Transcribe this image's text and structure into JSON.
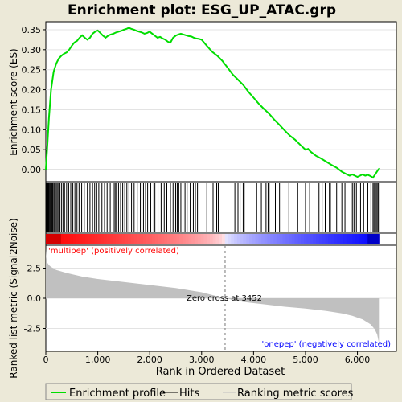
{
  "chart_data": {
    "type": "line",
    "title": "Enrichment plot: ESG_UP_ATAC.grp",
    "top_panel": {
      "ylabel": "Enrichment score (ES)",
      "ylim": [
        -0.03,
        0.37
      ],
      "yticks": [
        0.0,
        0.05,
        0.1,
        0.15,
        0.2,
        0.25,
        0.3,
        0.35
      ],
      "ytick_labels": [
        "0.00",
        "0.05",
        "0.10",
        "0.15",
        "0.20",
        "0.25",
        "0.30",
        "0.35"
      ],
      "series_name": "Enrichment profile",
      "color": "#00dd00",
      "x": [
        0,
        30,
        60,
        100,
        150,
        200,
        250,
        300,
        350,
        400,
        450,
        500,
        550,
        600,
        650,
        700,
        750,
        800,
        850,
        900,
        950,
        1000,
        1050,
        1100,
        1150,
        1200,
        1250,
        1300,
        1350,
        1400,
        1450,
        1500,
        1550,
        1600,
        1650,
        1700,
        1750,
        1800,
        1850,
        1900,
        1950,
        2000,
        2050,
        2100,
        2150,
        2200,
        2250,
        2300,
        2350,
        2400,
        2450,
        2500,
        2550,
        2600,
        2650,
        2700,
        2750,
        2800,
        2850,
        2900,
        2950,
        3000,
        3100,
        3200,
        3300,
        3400,
        3500,
        3600,
        3700,
        3800,
        3900,
        4000,
        4100,
        4200,
        4300,
        4400,
        4500,
        4600,
        4700,
        4800,
        4900,
        5000,
        5050,
        5100,
        5200,
        5300,
        5400,
        5500,
        5600,
        5700,
        5800,
        5850,
        5900,
        5950,
        6000,
        6050,
        6100,
        6150,
        6200,
        6250,
        6300,
        6350,
        6400,
        6430
      ],
      "y": [
        0.0,
        0.06,
        0.13,
        0.2,
        0.245,
        0.265,
        0.278,
        0.285,
        0.29,
        0.293,
        0.3,
        0.31,
        0.318,
        0.322,
        0.33,
        0.336,
        0.33,
        0.325,
        0.33,
        0.34,
        0.345,
        0.348,
        0.342,
        0.335,
        0.33,
        0.335,
        0.338,
        0.34,
        0.343,
        0.345,
        0.347,
        0.35,
        0.352,
        0.355,
        0.352,
        0.35,
        0.347,
        0.345,
        0.343,
        0.34,
        0.342,
        0.345,
        0.34,
        0.335,
        0.33,
        0.332,
        0.328,
        0.325,
        0.32,
        0.318,
        0.33,
        0.335,
        0.338,
        0.34,
        0.338,
        0.336,
        0.334,
        0.333,
        0.33,
        0.328,
        0.327,
        0.325,
        0.31,
        0.295,
        0.285,
        0.272,
        0.255,
        0.238,
        0.225,
        0.212,
        0.195,
        0.18,
        0.165,
        0.152,
        0.14,
        0.125,
        0.112,
        0.098,
        0.085,
        0.075,
        0.062,
        0.05,
        0.052,
        0.045,
        0.035,
        0.028,
        0.02,
        0.012,
        0.005,
        -0.005,
        -0.012,
        -0.015,
        -0.012,
        -0.015,
        -0.018,
        -0.015,
        -0.012,
        -0.015,
        -0.013,
        -0.016,
        -0.02,
        -0.01,
        0.0,
        0.004
      ]
    },
    "hits_panel": {
      "series_name": "Hits",
      "positions": [
        5,
        15,
        25,
        35,
        45,
        55,
        65,
        80,
        95,
        110,
        125,
        140,
        160,
        180,
        200,
        220,
        245,
        270,
        300,
        330,
        360,
        400,
        440,
        480,
        520,
        560,
        600,
        640,
        690,
        740,
        800,
        850,
        900,
        940,
        980,
        1020,
        1080,
        1130,
        1180,
        1240,
        1300,
        1330,
        1350,
        1370,
        1400,
        1440,
        1480,
        1520,
        1560,
        1600,
        1650,
        1700,
        1760,
        1820,
        1880,
        1920,
        1960,
        2020,
        2080,
        2100,
        2160,
        2220,
        2280,
        2330,
        2400,
        2450,
        2500,
        2530,
        2560,
        2600,
        2640,
        2680,
        2720,
        2780,
        2840,
        2880,
        2920,
        3100,
        3220,
        3290,
        3320,
        3640,
        3700,
        3740,
        3800,
        3820,
        4060,
        4150,
        4240,
        4280,
        4300,
        4420,
        4500,
        4680,
        4850,
        5000,
        5080,
        5260,
        5320,
        5380,
        5460,
        5480,
        5600,
        5700,
        5760,
        5880,
        5910,
        5940,
        5980,
        6060,
        6120,
        6200,
        6260,
        6300,
        6320,
        6360,
        6380,
        6400,
        6420
      ]
    },
    "rank_panel": {
      "ylabel": "Ranked list metric (Signal2Noise)",
      "series_name": "Ranking metric scores",
      "ylim": [
        -4.4,
        4.4
      ],
      "yticks": [
        -2.5,
        0.0,
        2.5
      ],
      "ytick_labels": [
        "-2.5",
        "0.0",
        "2.5"
      ],
      "x": [
        0,
        10,
        30,
        60,
        100,
        200,
        400,
        700,
        1000,
        1500,
        2000,
        2500,
        3000,
        3452,
        3800,
        4200,
        4600,
        5000,
        5400,
        5700,
        5900,
        6100,
        6250,
        6330,
        6380,
        6410,
        6430
      ],
      "y": [
        4.1,
        3.4,
        2.95,
        2.75,
        2.6,
        2.35,
        2.1,
        1.8,
        1.6,
        1.35,
        1.1,
        0.85,
        0.5,
        0.0,
        -0.3,
        -0.5,
        -0.7,
        -0.85,
        -1.05,
        -1.25,
        -1.45,
        -1.75,
        -2.15,
        -2.55,
        -3.0,
        -3.6,
        -4.3
      ],
      "annotations": [
        "Zero cross at 3452",
        "'multipep' (positively correlated)",
        "'onepep' (negatively correlated)"
      ],
      "zero_cross": 3452
    },
    "xlabel": "Rank in Ordered Dataset",
    "xlim": [
      0,
      6750
    ],
    "xticks": [
      0,
      1000,
      2000,
      3000,
      4000,
      5000,
      6000
    ],
    "xtick_labels": [
      "0",
      "1,000",
      "2,000",
      "3,000",
      "4,000",
      "5,000",
      "6,000"
    ],
    "n_genes": 6430,
    "legend": {
      "placement": "bottom",
      "entries": [
        "Enrichment profile",
        "Hits",
        "Ranking metric scores"
      ]
    },
    "colors": {
      "profile": "#00dd00",
      "hits": "#000000",
      "metric": "#c0c0c0",
      "positive": "#ff0000",
      "negative": "#0000ff",
      "background": "#ece9d8"
    }
  }
}
